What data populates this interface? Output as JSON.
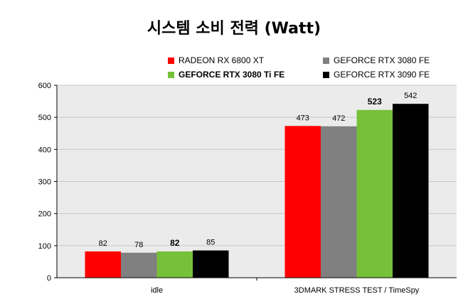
{
  "chart_data": {
    "type": "bar",
    "title": "시스템 소비 전력 (Watt)",
    "categories": [
      "idle",
      "3DMARK STRESS TEST / TimeSpy"
    ],
    "series": [
      {
        "name": "RADEON RX 6800 XT",
        "color": "#ff0000",
        "values": [
          82,
          473
        ],
        "label_bold": false
      },
      {
        "name": "GEFORCE RTX 3080 FE",
        "color": "#808080",
        "values": [
          78,
          472
        ],
        "label_bold": false
      },
      {
        "name": "GEFORCE RTX 3080 Ti FE",
        "color": "#77c13a",
        "values": [
          82,
          523
        ],
        "label_bold": true
      },
      {
        "name": "GEFORCE RTX 3090 FE",
        "color": "#000000",
        "values": [
          85,
          542
        ],
        "label_bold": false
      }
    ],
    "ylim": [
      0,
      600
    ],
    "yticks": [
      0,
      100,
      200,
      300,
      400,
      500,
      600
    ],
    "grid": true,
    "legend_position": "top",
    "plot_background": "#ebebeb",
    "gridline_color": "#c8c8c8"
  }
}
